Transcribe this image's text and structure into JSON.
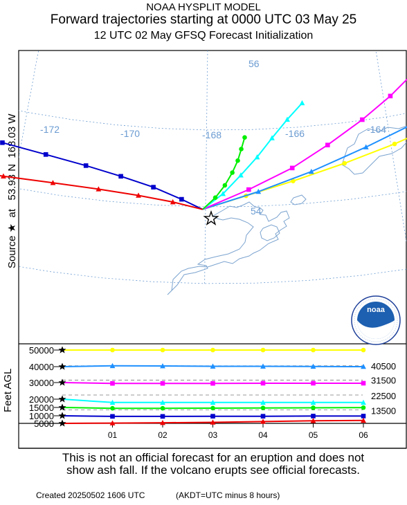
{
  "header": {
    "model": "NOAA HYSPLIT MODEL",
    "title": "Forward trajectories starting at 0000 UTC 03 May 25",
    "subtitle": "12 UTC 02 May    GFSQ  Forecast Initialization"
  },
  "map": {
    "ylabel": "Source ★  at   53.93 N  168.03 W",
    "lon_labels": [
      "-172",
      "-170",
      "-168",
      "-166",
      "-164"
    ],
    "lat_labels": [
      "56",
      "54"
    ],
    "grid_color": "#6b9bd1",
    "coast_color": "#7ba3cf",
    "source_marker": "star"
  },
  "logo": {
    "text": "noaa",
    "ring_text": "NATIONAL OCEANIC AND ATMOSPHERIC ADMINISTRATION · U.S. DEPARTMENT OF COMMERCE"
  },
  "chart_data": {
    "type": "line",
    "title": "Forward trajectories starting at 0000 UTC 03 May 25",
    "ylabel": "Feet AGL",
    "x": [
      "01",
      "02",
      "03",
      "04",
      "05",
      "06"
    ],
    "ylim": [
      5000,
      50000
    ],
    "y_ticks": [
      "50000",
      "40000",
      "30000",
      "20000",
      "15000",
      "10000",
      "5000"
    ],
    "right_labels": [
      "40500",
      "31500",
      "22500",
      "13500"
    ],
    "series": [
      {
        "color": "#ffff00",
        "marker": "circle",
        "start_height": 50000,
        "values": [
          50000,
          50000,
          50000,
          50000,
          50000,
          50000
        ],
        "track": [
          [
            -168.03,
            53.93
          ],
          [
            -167.58,
            54.28
          ],
          [
            -167.08,
            54.61
          ],
          [
            -166.52,
            54.95
          ],
          [
            -165.96,
            55.27
          ],
          [
            -165.38,
            55.6
          ],
          [
            -164.83,
            55.9
          ]
        ]
      },
      {
        "color": "#1e90ff",
        "marker": "triangle",
        "start_height": 40000,
        "values": [
          40500,
          40400,
          40200,
          40200,
          40100,
          40000
        ],
        "track": [
          [
            -168.03,
            53.93
          ],
          [
            -167.45,
            54.38
          ],
          [
            -166.88,
            54.82
          ],
          [
            -166.27,
            55.3
          ],
          [
            -165.62,
            55.77
          ],
          [
            -165.05,
            56.18
          ],
          [
            -164.5,
            56.58
          ]
        ]
      },
      {
        "color": "#ff00ff",
        "marker": "square",
        "start_height": 30000,
        "values": [
          29500,
          29500,
          29500,
          29600,
          29600,
          29600
        ],
        "track": [
          [
            -168.03,
            53.93
          ],
          [
            -167.55,
            54.44
          ],
          [
            -167.08,
            54.95
          ],
          [
            -166.68,
            55.47
          ],
          [
            -166.27,
            56.02
          ],
          [
            -165.92,
            56.52
          ],
          [
            -165.62,
            57.0
          ]
        ]
      },
      {
        "color": "#00ffff",
        "marker": "triangle",
        "start_height": 20000,
        "values": [
          18000,
          18000,
          18000,
          18000,
          18000,
          18000
        ],
        "track": [
          [
            -168.03,
            53.93
          ],
          [
            -167.82,
            54.34
          ],
          [
            -167.63,
            54.82
          ],
          [
            -167.45,
            55.28
          ],
          [
            -167.28,
            55.76
          ],
          [
            -167.1,
            56.22
          ],
          [
            -166.92,
            56.62
          ]
        ]
      },
      {
        "color": "#00ee00",
        "marker": "circle",
        "start_height": 15000,
        "values": [
          14500,
          14500,
          14600,
          14700,
          14800,
          14900
        ],
        "track": [
          [
            -168.03,
            53.93
          ],
          [
            -167.9,
            54.24
          ],
          [
            -167.8,
            54.56
          ],
          [
            -167.72,
            54.89
          ],
          [
            -167.66,
            55.2
          ],
          [
            -167.62,
            55.5
          ],
          [
            -167.58,
            55.8
          ]
        ]
      },
      {
        "color": "#0000cc",
        "marker": "square",
        "start_height": 10000,
        "values": [
          9600,
          9600,
          9700,
          9700,
          9800,
          9800
        ],
        "track": [
          [
            -168.03,
            53.93
          ],
          [
            -168.25,
            54.18
          ],
          [
            -168.55,
            54.46
          ],
          [
            -168.9,
            54.68
          ],
          [
            -169.28,
            54.86
          ],
          [
            -169.72,
            55.0
          ],
          [
            -170.2,
            55.1
          ]
        ]
      },
      {
        "color": "#ee0000",
        "marker": "triangle",
        "start_height": 5000,
        "values": [
          5200,
          5400,
          5700,
          6200,
          6700,
          6900
        ],
        "track": [
          [
            -168.03,
            53.93
          ],
          [
            -168.34,
            54.1
          ],
          [
            -168.7,
            54.22
          ],
          [
            -169.12,
            54.29
          ],
          [
            -169.6,
            54.3
          ],
          [
            -170.12,
            54.25
          ],
          [
            -170.7,
            54.13
          ]
        ]
      }
    ]
  },
  "footer": {
    "disclaimer_line1": "This is not an official forecast for an eruption and does not",
    "disclaimer_line2": "show ash fall. If the volcano erupts see official forecasts.",
    "created": "Created 20250502 1606 UTC",
    "tz_note": "(AKDT=UTC minus 8 hours)"
  }
}
